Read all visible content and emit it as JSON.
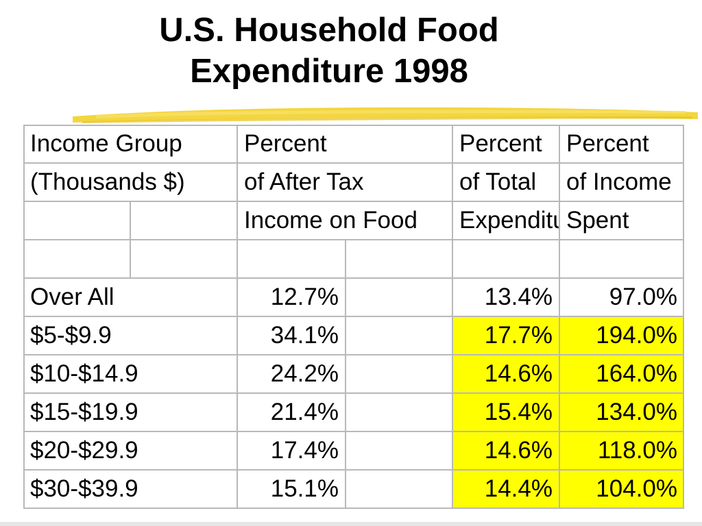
{
  "title": {
    "line1": "U.S. Household Food",
    "line2": "Expenditure 1998"
  },
  "table": {
    "header": {
      "col1": [
        "Income Group",
        "(Thousands $)",
        ""
      ],
      "col2": [
        "Percent",
        "of After Tax",
        "Income on Food"
      ],
      "col3": [
        "Percent",
        "of Total",
        "Expenditure"
      ],
      "col4": [
        "Percent",
        "of Income",
        "Spent"
      ]
    },
    "rows": [
      {
        "group": "Over All",
        "after_tax": "12.7%",
        "total_exp": "13.4%",
        "income_spent": "97.0%",
        "highlight": false
      },
      {
        "group": "$5-$9.9",
        "after_tax": "34.1%",
        "total_exp": "17.7%",
        "income_spent": "194.0%",
        "highlight": true
      },
      {
        "group": "$10-$14.9",
        "after_tax": "24.2%",
        "total_exp": "14.6%",
        "income_spent": "164.0%",
        "highlight": true
      },
      {
        "group": "$15-$19.9",
        "after_tax": "21.4%",
        "total_exp": "15.4%",
        "income_spent": "134.0%",
        "highlight": true
      },
      {
        "group": "$20-$29.9",
        "after_tax": "17.4%",
        "total_exp": "14.6%",
        "income_spent": "118.0%",
        "highlight": true
      },
      {
        "group": "$30-$39.9",
        "after_tax": "15.1%",
        "total_exp": "14.4%",
        "income_spent": "104.0%",
        "highlight": true
      }
    ]
  },
  "colors": {
    "highlight": "#ffff00",
    "highlighter_stroke": "#f2d12a",
    "grid": "#b8b8b8"
  }
}
